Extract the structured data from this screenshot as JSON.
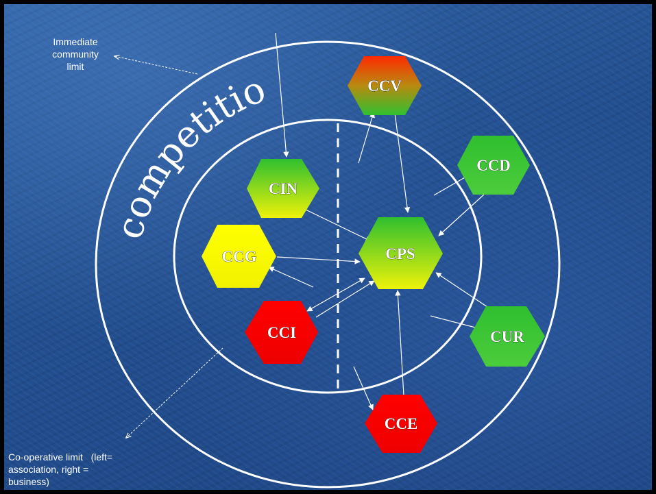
{
  "annotations": {
    "immediate_community": [
      "Immediate",
      "community",
      "limit"
    ],
    "cooperative_limit": [
      "Co-operative limit   (left=",
      "association, right =",
      "business)"
    ],
    "competition": "competition"
  },
  "nodes": {
    "ccv": {
      "label": "CCV",
      "fill": "green-red"
    },
    "ccd": {
      "label": "CCD",
      "fill": "green"
    },
    "cin": {
      "label": "CIN",
      "fill": "green-yellow"
    },
    "ccg": {
      "label": "CCG",
      "fill": "yellow"
    },
    "cps": {
      "label": "CPS",
      "fill": "green-yellow"
    },
    "cci": {
      "label": "CCI",
      "fill": "red"
    },
    "cur": {
      "label": "CUR",
      "fill": "green"
    },
    "cce": {
      "label": "CCE",
      "fill": "red"
    }
  },
  "colors": {
    "background": "#2a5a9c",
    "line": "#ffffff",
    "green": "#3ec23a",
    "yellow": "#ffff00",
    "red": "#ff0000"
  }
}
